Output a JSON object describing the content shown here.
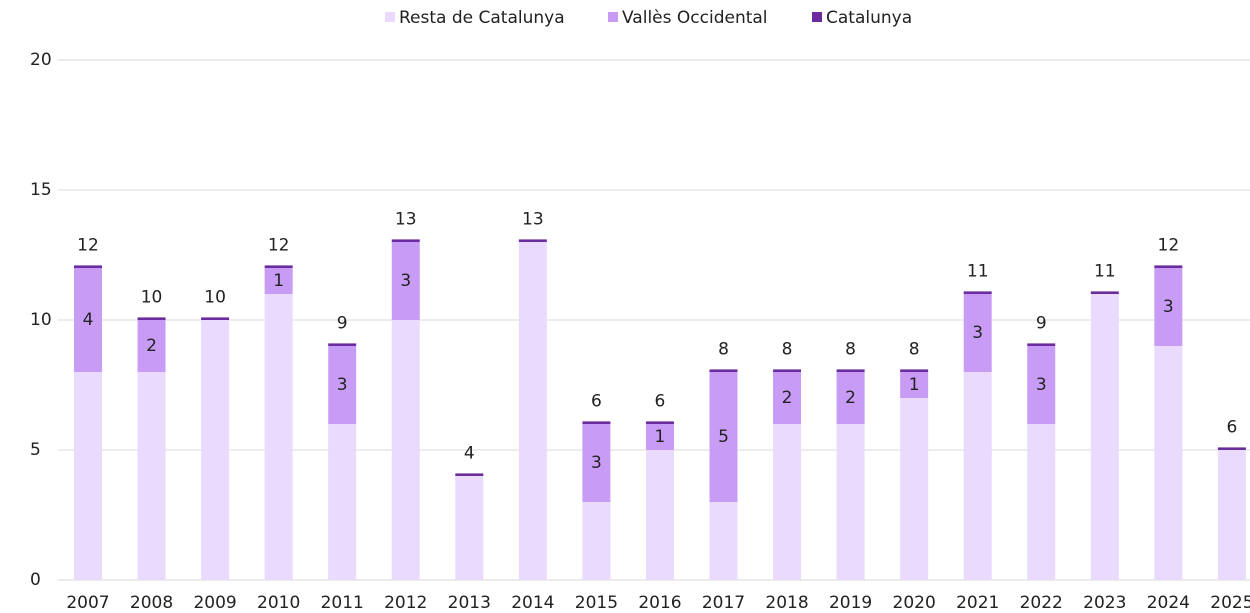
{
  "chart_data": {
    "type": "stacked_bar",
    "categories": [
      "2007",
      "2008",
      "2009",
      "2010",
      "2011",
      "2012",
      "2013",
      "2014",
      "2015",
      "2016",
      "2017",
      "2018",
      "2019",
      "2020",
      "2021",
      "2022",
      "2023",
      "2024",
      "2025"
    ],
    "series": [
      {
        "name": "Resta de Catalunya",
        "color": "#eadafd",
        "values": [
          8,
          8,
          10,
          11,
          6,
          10,
          4,
          13,
          3,
          5,
          3,
          6,
          6,
          7,
          8,
          6,
          11,
          9,
          5
        ]
      },
      {
        "name": "Vallès Occidental",
        "color": "#c89cf5",
        "values": [
          4,
          2,
          0,
          1,
          3,
          3,
          0,
          0,
          3,
          1,
          5,
          2,
          2,
          1,
          3,
          3,
          0,
          3,
          0
        ]
      },
      {
        "name": "Catalunya",
        "color": "#6a2c9e",
        "values": [
          0.1,
          0.1,
          0.1,
          0.1,
          0.1,
          0.1,
          0.1,
          0.1,
          0.1,
          0.1,
          0.1,
          0.1,
          0.1,
          0.1,
          0.1,
          0.1,
          0.1,
          0.1,
          0.1
        ]
      }
    ],
    "totals": [
      12,
      10,
      10,
      12,
      9,
      13,
      4,
      13,
      6,
      6,
      8,
      8,
      8,
      8,
      11,
      9,
      11,
      12,
      6
    ],
    "ylim": [
      0,
      20
    ],
    "yticks": [
      0,
      5,
      10,
      15,
      20
    ],
    "grid": true,
    "legend": "top"
  }
}
